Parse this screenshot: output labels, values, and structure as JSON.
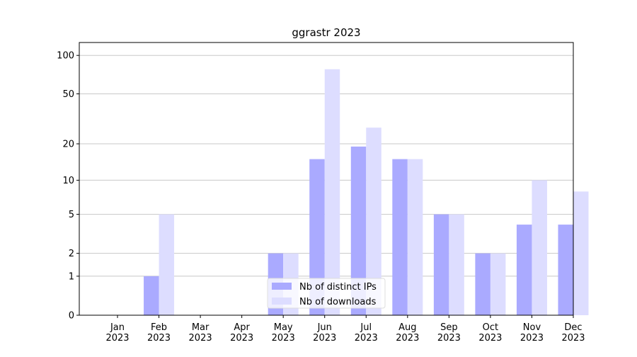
{
  "chart_data": {
    "type": "bar",
    "title": "ggrastr 2023",
    "categories": [
      "Jan 2023",
      "Feb 2023",
      "Mar 2023",
      "Apr 2023",
      "May 2023",
      "Jun 2023",
      "Jul 2023",
      "Aug 2023",
      "Sep 2023",
      "Oct 2023",
      "Nov 2023",
      "Dec 2023"
    ],
    "series": [
      {
        "name": "Nb of distinct IPs",
        "color": "#aaaaff",
        "values": [
          0,
          1,
          0,
          0,
          2,
          15,
          19,
          15,
          5,
          2,
          4,
          4
        ]
      },
      {
        "name": "Nb of downloads",
        "color": "#ddddff",
        "values": [
          0,
          5,
          0,
          0,
          2,
          78,
          27,
          15,
          5,
          2,
          10,
          8
        ]
      }
    ],
    "yscale": "log1p",
    "ylim": [
      0,
      126
    ],
    "yticks": [
      0,
      1,
      2,
      5,
      10,
      20,
      50,
      100
    ],
    "grid": true,
    "legend": "lower center"
  }
}
